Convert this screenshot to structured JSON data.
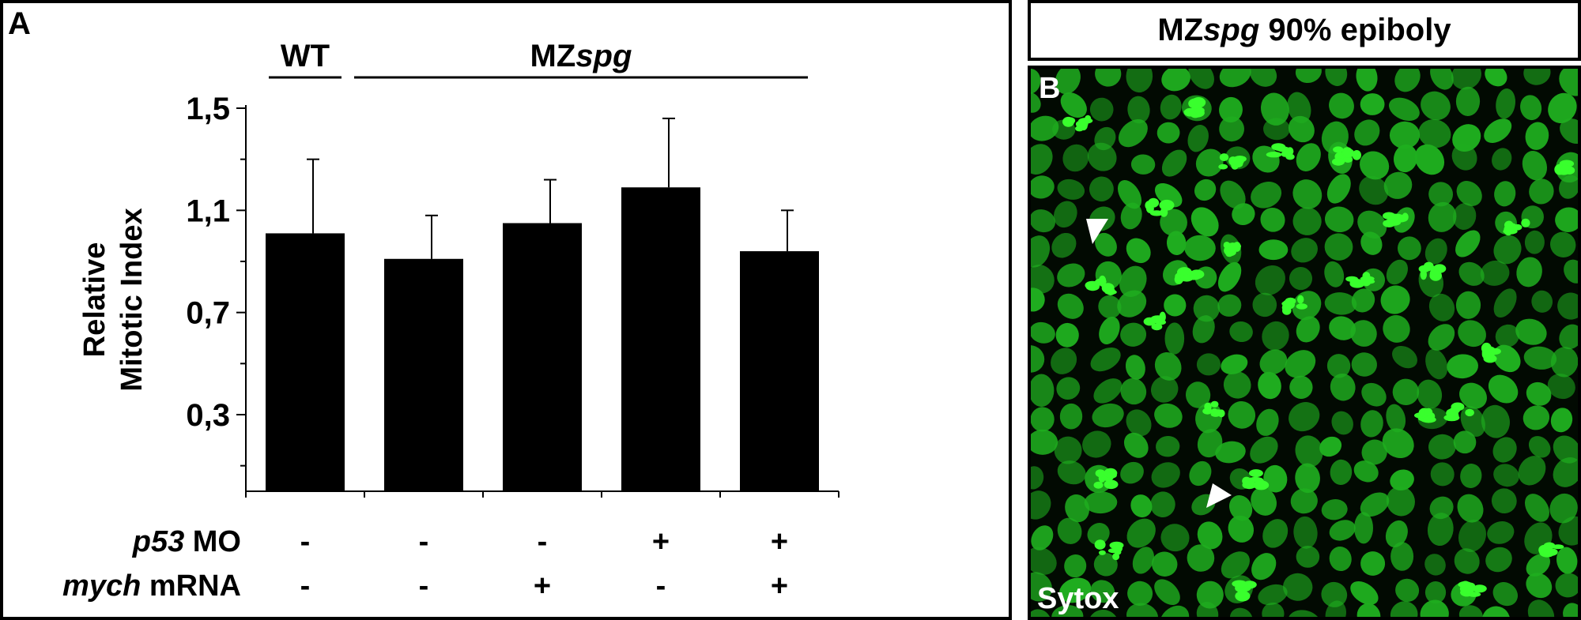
{
  "panel_a": {
    "letter": "A"
  },
  "panel_b": {
    "header_prefix": "MZ",
    "header_italic": "spg",
    "header_suffix": " 90% epiboly",
    "letter": "B",
    "stain_label": "Sytox",
    "colors": {
      "nucleus": "#1fae1f",
      "mitotic": "#39ff2d",
      "background": "#020a02",
      "arrowhead": "#ffffff"
    }
  },
  "chart_data": {
    "type": "bar",
    "ylabel_lines": [
      "Relative",
      "Mitotic Index"
    ],
    "ylim": [
      0,
      1.5
    ],
    "yticks": [
      0.3,
      0.7,
      1.1,
      1.5
    ],
    "ytick_labels": [
      "0,3",
      "0,7",
      "1,1",
      "1,5"
    ],
    "values": [
      1.01,
      0.91,
      1.05,
      1.19,
      0.94
    ],
    "errors": [
      0.29,
      0.17,
      0.17,
      0.27,
      0.16
    ],
    "bar_color": "#000000",
    "groups": [
      {
        "label": "WT",
        "bars": [
          0
        ]
      },
      {
        "label_prefix": "MZ",
        "label_italic": "spg",
        "bars": [
          1,
          2,
          3,
          4
        ]
      }
    ],
    "conditions": [
      {
        "label_italic": "p53",
        "label_rest": " MO",
        "values": [
          "-",
          "-",
          "-",
          "+",
          "+"
        ]
      },
      {
        "label_italic": "mych",
        "label_rest": " mRNA",
        "values": [
          "-",
          "-",
          "+",
          "-",
          "+"
        ]
      }
    ]
  }
}
